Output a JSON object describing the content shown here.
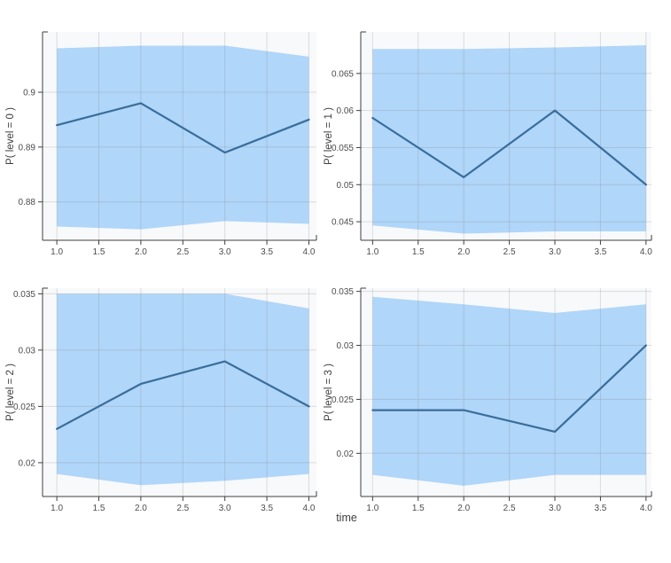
{
  "figure": {
    "xlabel": "time",
    "background": "#ffffff",
    "plot_background": "#f8f9fb",
    "band_color": "#b0d6f9",
    "line_color": "#3a6d9b",
    "grid_color": "rgba(130,130,130,0.25)",
    "axis_color": "#3f3f3f",
    "tick_label_color": "#4c4c4c"
  },
  "chart_data": [
    {
      "type": "line",
      "subplot": "level-0",
      "title": "",
      "ylabel": "P( level = 0 )",
      "x": [
        1,
        2,
        3,
        4
      ],
      "series": [
        {
          "name": "mean",
          "values": [
            0.894,
            0.898,
            0.889,
            0.895
          ]
        },
        {
          "name": "upper",
          "values": [
            0.908,
            0.9085,
            0.9085,
            0.9065
          ]
        },
        {
          "name": "lower",
          "values": [
            0.8755,
            0.875,
            0.8765,
            0.876
          ]
        }
      ],
      "xticks": [
        1,
        1.5,
        2,
        2.5,
        3,
        3.5,
        4
      ],
      "xtick_labels": [
        "1.0",
        "1.5",
        "2.0",
        "2.5",
        "3.0",
        "3.5",
        "4.0"
      ],
      "yticks": [
        0.88,
        0.89,
        0.9
      ],
      "ytick_labels": [
        "0.88",
        "0.89",
        "0.9"
      ],
      "xlim": [
        0.83,
        4.09
      ],
      "ylim": [
        0.873,
        0.911
      ],
      "grid": true
    },
    {
      "type": "line",
      "subplot": "level-1",
      "title": "",
      "ylabel": "P( level = 1 )",
      "x": [
        1,
        2,
        3,
        4
      ],
      "series": [
        {
          "name": "mean",
          "values": [
            0.059,
            0.051,
            0.06,
            0.05
          ]
        },
        {
          "name": "upper",
          "values": [
            0.0683,
            0.0683,
            0.0685,
            0.0688
          ]
        },
        {
          "name": "lower",
          "values": [
            0.0445,
            0.0434,
            0.0437,
            0.0437
          ]
        }
      ],
      "xticks": [
        1,
        1.5,
        2,
        2.5,
        3,
        3.5,
        4
      ],
      "xtick_labels": [
        "1.0",
        "1.5",
        "2.0",
        "2.5",
        "3.0",
        "3.5",
        "4.0"
      ],
      "yticks": [
        0.045,
        0.05,
        0.055,
        0.06,
        0.065
      ],
      "ytick_labels": [
        "0.045",
        "0.05",
        "0.055",
        "0.06",
        "0.065"
      ],
      "xlim": [
        0.87,
        4.06
      ],
      "ylim": [
        0.0425,
        0.0706
      ],
      "grid": true
    },
    {
      "type": "line",
      "subplot": "level-2",
      "title": "",
      "ylabel": "P( level = 2 )",
      "x": [
        1,
        2,
        3,
        4
      ],
      "series": [
        {
          "name": "mean",
          "values": [
            0.023,
            0.027,
            0.029,
            0.025
          ]
        },
        {
          "name": "upper",
          "values": [
            0.035,
            0.035,
            0.035,
            0.0337
          ]
        },
        {
          "name": "lower",
          "values": [
            0.019,
            0.018,
            0.0184,
            0.019
          ]
        }
      ],
      "xticks": [
        1,
        1.5,
        2,
        2.5,
        3,
        3.5,
        4
      ],
      "xtick_labels": [
        "1.0",
        "1.5",
        "2.0",
        "2.5",
        "3.0",
        "3.5",
        "4.0"
      ],
      "yticks": [
        0.02,
        0.025,
        0.03,
        0.035
      ],
      "ytick_labels": [
        "0.02",
        "0.025",
        "0.03",
        "0.035"
      ],
      "xlim": [
        0.83,
        4.09
      ],
      "ylim": [
        0.017,
        0.0355
      ],
      "grid": true
    },
    {
      "type": "line",
      "subplot": "level-3",
      "title": "",
      "ylabel": "P( level = 3 )",
      "x": [
        1,
        2,
        3,
        4
      ],
      "series": [
        {
          "name": "mean",
          "values": [
            0.024,
            0.024,
            0.022,
            0.03
          ]
        },
        {
          "name": "upper",
          "values": [
            0.0345,
            0.0338,
            0.033,
            0.0338
          ]
        },
        {
          "name": "lower",
          "values": [
            0.018,
            0.017,
            0.018,
            0.018
          ]
        }
      ],
      "xticks": [
        1,
        1.5,
        2,
        2.5,
        3,
        3.5,
        4
      ],
      "xtick_labels": [
        "1.0",
        "1.5",
        "2.0",
        "2.5",
        "3.0",
        "3.5",
        "4.0"
      ],
      "yticks": [
        0.02,
        0.025,
        0.03,
        0.035
      ],
      "ytick_labels": [
        "0.02",
        "0.025",
        "0.03",
        "0.035"
      ],
      "xlim": [
        0.87,
        4.06
      ],
      "ylim": [
        0.016,
        0.0353
      ],
      "grid": true
    }
  ]
}
